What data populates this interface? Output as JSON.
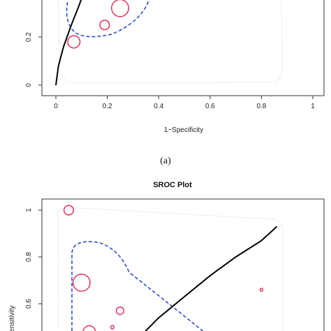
{
  "caption": "(a)",
  "chart_data": [
    {
      "type": "scatter",
      "title": "",
      "xlabel": "1−Specificity",
      "ylabel": "",
      "xlim": [
        0,
        1
      ],
      "x_ticks": [
        "0",
        "0.2",
        "0.4",
        "0.6",
        "0.8",
        "1"
      ],
      "y_ticks": [
        "0",
        "0.2"
      ],
      "studies": [
        {
          "x": 0.07,
          "y": 0.18,
          "weight": 2.6
        },
        {
          "x": 0.19,
          "y": 0.25,
          "weight": 2.0
        },
        {
          "x": 0.25,
          "y": 0.32,
          "weight": 3.6
        }
      ],
      "sroc_curve": [
        [
          0.0,
          0.0
        ],
        [
          0.01,
          0.08
        ],
        [
          0.03,
          0.16
        ],
        [
          0.06,
          0.25
        ],
        [
          0.09,
          0.33
        ],
        [
          0.1,
          0.36
        ]
      ],
      "colors": {
        "points": "#e0325a",
        "curve": "#000000",
        "confidence": "#2244cc",
        "prediction": "#bbbbbb"
      }
    },
    {
      "type": "scatter",
      "title": "SROC Plot",
      "xlabel": "",
      "ylabel": "Sensitivity",
      "y_ticks": [
        "1",
        "0.8",
        "0.6"
      ],
      "studies": [
        {
          "x": 0.05,
          "y": 1.0,
          "weight": 2.0
        },
        {
          "x": 0.1,
          "y": 0.69,
          "weight": 3.6
        },
        {
          "x": 0.13,
          "y": 0.48,
          "weight": 2.6
        },
        {
          "x": 0.25,
          "y": 0.57,
          "weight": 1.6
        },
        {
          "x": 0.22,
          "y": 0.5,
          "weight": 0.7
        },
        {
          "x": 0.8,
          "y": 0.66,
          "weight": 0.6
        }
      ],
      "sroc_curve": [
        [
          0.31,
          0.44
        ],
        [
          0.4,
          0.54
        ],
        [
          0.5,
          0.63
        ],
        [
          0.6,
          0.72
        ],
        [
          0.7,
          0.8
        ],
        [
          0.8,
          0.87
        ],
        [
          0.86,
          0.93
        ]
      ],
      "colors": {
        "points": "#e0325a",
        "curve": "#000000",
        "confidence": "#2244cc",
        "prediction": "#bbbbbb"
      }
    }
  ]
}
